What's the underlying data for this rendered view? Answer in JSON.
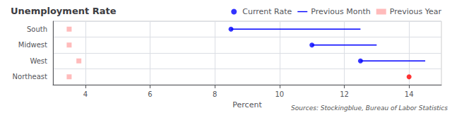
{
  "chart_data": {
    "type": "dot",
    "title": "Unemployment Rate",
    "xlabel": "Percent",
    "annotations": [
      "Sources: Stockingblue, Bureau of Labor Statistics"
    ],
    "orientation": "horizontal",
    "categories": [
      "South",
      "Midwest",
      "West",
      "Northeast"
    ],
    "series": [
      {
        "name": "Current Rate",
        "type": "scatter",
        "marker": "circle",
        "values": [
          8.5,
          11.0,
          12.5,
          14.0
        ],
        "colors": [
          "blue",
          "blue",
          "blue",
          "red"
        ]
      },
      {
        "name": "Previous Month",
        "type": "range_line",
        "line_style": "solid",
        "color": "blue",
        "values": [
          12.5,
          13.0,
          14.5,
          null
        ]
      },
      {
        "name": "Previous Year",
        "type": "scatter",
        "marker": "square",
        "color": "#ffaaaa",
        "values": [
          3.5,
          3.5,
          3.8,
          3.5
        ]
      }
    ],
    "xlim": [
      3.0,
      15.0
    ],
    "xticks": [
      4,
      6,
      8,
      10,
      12,
      14
    ],
    "grid": true,
    "legend": "top"
  }
}
